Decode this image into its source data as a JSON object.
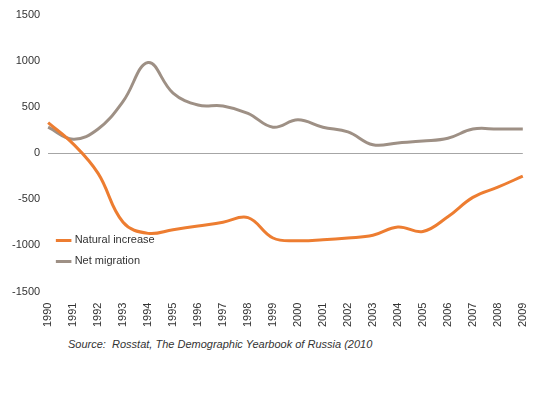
{
  "chart_data": {
    "type": "line",
    "source": "Source:  Rosstat, The Demographic Yearbook of Russia (2010",
    "categories": [
      "1990",
      "1991",
      "1992",
      "1993",
      "1994",
      "1995",
      "1996",
      "1997",
      "1998",
      "1999",
      "2000",
      "2001",
      "2002",
      "2003",
      "2004",
      "2005",
      "2006",
      "2007",
      "2008",
      "2009"
    ],
    "series": [
      {
        "name": "Natural increase",
        "color": "#ed7d31",
        "values": [
          330,
          100,
          -220,
          -750,
          -870,
          -830,
          -790,
          -750,
          -700,
          -920,
          -950,
          -940,
          -920,
          -890,
          -800,
          -850,
          -690,
          -480,
          -370,
          -250
        ]
      },
      {
        "name": "Net migration",
        "color": "#9e9085",
        "values": [
          280,
          150,
          260,
          560,
          980,
          650,
          520,
          510,
          430,
          280,
          360,
          280,
          230,
          90,
          110,
          130,
          160,
          260,
          260,
          260
        ]
      }
    ],
    "ylim": [
      -1500,
      1500
    ],
    "yticks": [
      -1500,
      -1000,
      -500,
      0,
      500,
      1000,
      1500
    ],
    "grid": false,
    "legend": "top-right",
    "marker": "none",
    "line_style": "solid"
  }
}
